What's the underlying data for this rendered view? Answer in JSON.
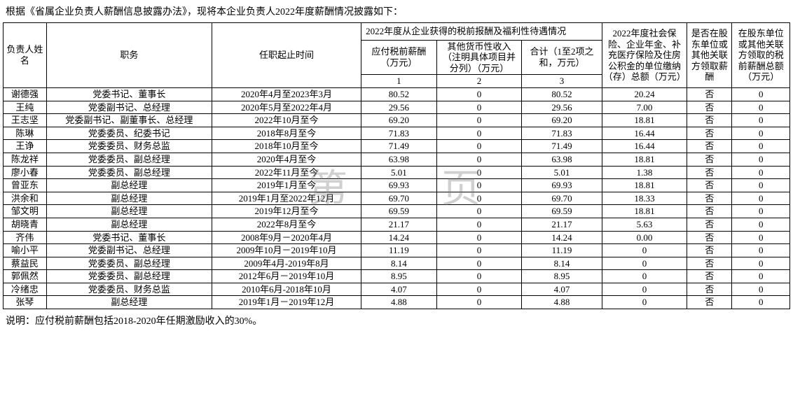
{
  "intro_text": "根据《省属企业负责人薪酬信息披露办法》，现将本企业负责人2022年度薪酬情况披露如下：",
  "watermark_text": "第 页",
  "headers": {
    "name": "负责人姓名",
    "position": "职务",
    "term": "任职起止时间",
    "group_comp": "2022年度从企业获得的税前报酬及福利性待遇情况",
    "c1_label": "应付税前薪酬（万元）",
    "c2_label": "其他货币性收入（注明具体项目并分列）（万元）",
    "c3_label": "合计（1至2项之和，万元）",
    "c1_num": "1",
    "c2_num": "2",
    "c3_num": "3",
    "c4_label": "2022年度社会保险、企业年金、补充医疗保险及住房公积金的单位缴纳（存）总额（万元）",
    "c5_label": "是否在股东单位或其他关联方领取薪酬",
    "c6_label": "在股东单位或其他关联方领取的税前薪酬总额（万元）"
  },
  "rows": [
    {
      "name": "谢德强",
      "position": "党委书记、董事长",
      "term": "2020年4月至2023年3月",
      "c1": "80.52",
      "c2": "0",
      "c3": "80.52",
      "c4": "20.24",
      "c5": "否",
      "c6": "0"
    },
    {
      "name": "王纯",
      "position": "党委副书记、总经理",
      "term": "2020年5月至2022年4月",
      "c1": "29.56",
      "c2": "0",
      "c3": "29.56",
      "c4": "7.00",
      "c5": "否",
      "c6": "0"
    },
    {
      "name": "王志坚",
      "position": "党委副书记、副董事长、总经理",
      "term": "2022年10月至今",
      "c1": "69.20",
      "c2": "0",
      "c3": "69.20",
      "c4": "18.81",
      "c5": "否",
      "c6": "0"
    },
    {
      "name": "陈琳",
      "position": "党委委员、纪委书记",
      "term": "2018年8月至今",
      "c1": "71.83",
      "c2": "0",
      "c3": "71.83",
      "c4": "16.44",
      "c5": "否",
      "c6": "0"
    },
    {
      "name": "王诤",
      "position": "党委委员、财务总监",
      "term": "2018年10月至今",
      "c1": "71.49",
      "c2": "0",
      "c3": "71.49",
      "c4": "16.44",
      "c5": "否",
      "c6": "0"
    },
    {
      "name": "陈龙祥",
      "position": "党委委员、副总经理",
      "term": "2020年4月至今",
      "c1": "63.98",
      "c2": "0",
      "c3": "63.98",
      "c4": "18.81",
      "c5": "否",
      "c6": "0"
    },
    {
      "name": "廖小春",
      "position": "党委委员、副总经理",
      "term": "2022年11月至今",
      "c1": "5.01",
      "c2": "0",
      "c3": "5.01",
      "c4": "1.38",
      "c5": "否",
      "c6": "0"
    },
    {
      "name": "曾亚东",
      "position": "副总经理",
      "term": "2019年1月至今",
      "c1": "69.93",
      "c2": "0",
      "c3": "69.93",
      "c4": "18.81",
      "c5": "否",
      "c6": "0"
    },
    {
      "name": "洪余和",
      "position": "副总经理",
      "term": "2019年1月至2022年12月",
      "c1": "69.70",
      "c2": "0",
      "c3": "69.70",
      "c4": "18.33",
      "c5": "否",
      "c6": "0"
    },
    {
      "name": "邹文明",
      "position": "副总经理",
      "term": "2019年12月至今",
      "c1": "69.59",
      "c2": "0",
      "c3": "69.59",
      "c4": "18.81",
      "c5": "否",
      "c6": "0"
    },
    {
      "name": "胡晓青",
      "position": "副总经理",
      "term": "2022年8月至今",
      "c1": "21.17",
      "c2": "0",
      "c3": "21.17",
      "c4": "5.63",
      "c5": "否",
      "c6": "0"
    },
    {
      "name": "齐伟",
      "position": "党委书记、董事长",
      "term": "2008年9月－2020年4月",
      "c1": "14.24",
      "c2": "0",
      "c3": "14.24",
      "c4": "0.00",
      "c5": "否",
      "c6": "0"
    },
    {
      "name": "喻小平",
      "position": "党委副书记、总经理",
      "term": "2009年10月－2019年10月",
      "c1": "11.19",
      "c2": "0",
      "c3": "11.19",
      "c4": "0",
      "c5": "否",
      "c6": "0"
    },
    {
      "name": "蔡益民",
      "position": "党委委员、副总经理",
      "term": "2009年4月-2019年8月",
      "c1": "8.14",
      "c2": "0",
      "c3": "8.14",
      "c4": "0",
      "c5": "否",
      "c6": "0"
    },
    {
      "name": "郭佩然",
      "position": "党委委员、副总经理",
      "term": "2012年6月－2019年10月",
      "c1": "8.95",
      "c2": "0",
      "c3": "8.95",
      "c4": "0",
      "c5": "否",
      "c6": "0"
    },
    {
      "name": "冷绪忠",
      "position": "党委委员、财务总监",
      "term": "2010年6月-2018年10月",
      "c1": "4.07",
      "c2": "0",
      "c3": "4.07",
      "c4": "0",
      "c5": "否",
      "c6": "0"
    },
    {
      "name": "张琴",
      "position": "副总经理",
      "term": "2019年1月－2019年12月",
      "c1": "4.88",
      "c2": "0",
      "c3": "4.88",
      "c4": "0",
      "c5": "否",
      "c6": "0"
    }
  ],
  "footer_note": "说明：应付税前薪酬包括2018-2020年任期激励收入的30%。",
  "colors": {
    "border": "#000000",
    "text": "#000000",
    "background": "#ffffff",
    "watermark": "rgba(120,120,120,0.35)"
  },
  "font": {
    "family": "SimSun",
    "size_body": 13,
    "size_watermark": 56
  }
}
